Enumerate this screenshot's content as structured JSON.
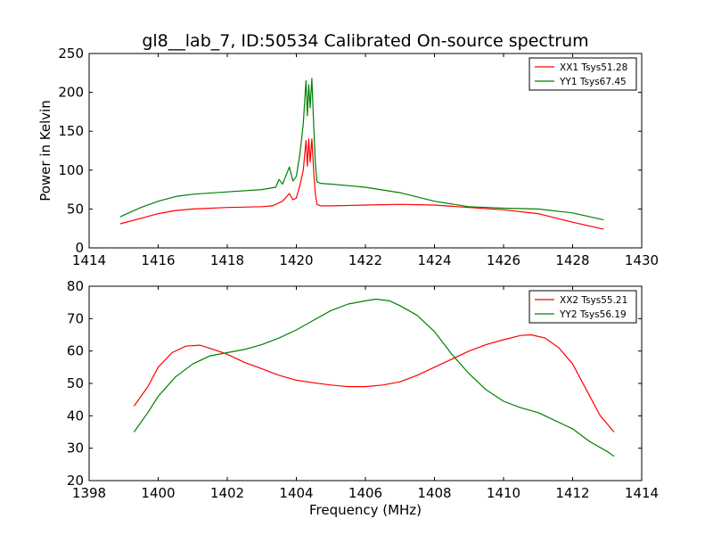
{
  "title": "gl8__lab_7, ID:50534 Calibrated On-source spectrum",
  "xlabel": "Frequency (MHz)",
  "colors": {
    "red": "#ff0000",
    "green": "#008000"
  },
  "chart_data": [
    {
      "type": "line",
      "title": "gl8__lab_7, ID:50534 Calibrated On-source spectrum",
      "xlabel": "",
      "ylabel": "Power in Kelvin",
      "xlim": [
        1414,
        1430
      ],
      "ylim": [
        0,
        250
      ],
      "xticks": [
        "1414",
        "1416",
        "1418",
        "1420",
        "1422",
        "1424",
        "1426",
        "1428",
        "1430"
      ],
      "yticks": [
        "0",
        "50",
        "100",
        "150",
        "200",
        "250"
      ],
      "grid": false,
      "legend": "top-right",
      "series": [
        {
          "name": "XX1 Tsys51.28",
          "color": "#ff0000",
          "x": [
            1414.9,
            1415.5,
            1416.0,
            1416.5,
            1417.0,
            1418.0,
            1419.0,
            1419.3,
            1419.6,
            1419.8,
            1419.9,
            1420.0,
            1420.1,
            1420.2,
            1420.28,
            1420.32,
            1420.36,
            1420.4,
            1420.45,
            1420.5,
            1420.55,
            1420.6,
            1420.7,
            1421.0,
            1422.0,
            1423.0,
            1424.0,
            1425.0,
            1426.0,
            1427.0,
            1428.0,
            1428.9
          ],
          "y": [
            31,
            38,
            44,
            48,
            50,
            52,
            53,
            54,
            60,
            70,
            62,
            64,
            80,
            100,
            138,
            105,
            140,
            110,
            140,
            100,
            70,
            56,
            54,
            54,
            55,
            56,
            55,
            52,
            49,
            44,
            33,
            24
          ]
        },
        {
          "name": "YY1 Tsys67.45",
          "color": "#008000",
          "x": [
            1414.9,
            1415.5,
            1416.0,
            1416.5,
            1417.0,
            1418.0,
            1419.0,
            1419.4,
            1419.5,
            1419.6,
            1419.8,
            1419.9,
            1420.0,
            1420.1,
            1420.2,
            1420.28,
            1420.32,
            1420.36,
            1420.4,
            1420.45,
            1420.5,
            1420.55,
            1420.6,
            1420.7,
            1421.0,
            1421.5,
            1422.0,
            1423.0,
            1424.0,
            1425.0,
            1426.0,
            1427.0,
            1428.0,
            1428.9
          ],
          "y": [
            40,
            52,
            60,
            66,
            69,
            72,
            75,
            78,
            88,
            82,
            104,
            86,
            92,
            120,
            160,
            215,
            170,
            210,
            180,
            218,
            160,
            110,
            85,
            83,
            82,
            80,
            78,
            71,
            60,
            53,
            51,
            50,
            45,
            36
          ]
        }
      ]
    },
    {
      "type": "line",
      "title": "",
      "xlabel": "Frequency (MHz)",
      "ylabel": "",
      "xlim": [
        1398,
        1414
      ],
      "ylim": [
        20,
        80
      ],
      "xticks": [
        "1398",
        "1400",
        "1402",
        "1404",
        "1406",
        "1408",
        "1410",
        "1412",
        "1414"
      ],
      "yticks": [
        "20",
        "30",
        "40",
        "50",
        "60",
        "70",
        "80"
      ],
      "grid": false,
      "legend": "top-right",
      "series": [
        {
          "name": "XX2 Tsys55.21",
          "color": "#ff0000",
          "x": [
            1399.3,
            1399.7,
            1400.0,
            1400.4,
            1400.8,
            1401.2,
            1401.6,
            1402.0,
            1402.5,
            1403.0,
            1403.5,
            1404.0,
            1404.5,
            1405.0,
            1405.5,
            1406.0,
            1406.5,
            1407.0,
            1407.5,
            1408.0,
            1408.5,
            1409.0,
            1409.5,
            1410.0,
            1410.5,
            1410.8,
            1411.2,
            1411.6,
            1412.0,
            1412.4,
            1412.8,
            1413.2
          ],
          "y": [
            43,
            49,
            55,
            59.5,
            61.5,
            61.8,
            60.5,
            59,
            56.5,
            54.5,
            52.5,
            51,
            50.2,
            49.5,
            49,
            49,
            49.5,
            50.5,
            52.5,
            55,
            57.5,
            60,
            62,
            63.5,
            64.8,
            65,
            64,
            61,
            56,
            48,
            40,
            35
          ]
        },
        {
          "name": "YY2 Tsys56.19",
          "color": "#008000",
          "x": [
            1399.3,
            1399.7,
            1400.0,
            1400.5,
            1401.0,
            1401.5,
            1402.0,
            1402.5,
            1403.0,
            1403.5,
            1404.0,
            1404.5,
            1405.0,
            1405.5,
            1406.0,
            1406.3,
            1406.7,
            1407.0,
            1407.5,
            1408.0,
            1408.5,
            1409.0,
            1409.5,
            1410.0,
            1410.5,
            1411.0,
            1411.5,
            1412.0,
            1412.5,
            1413.0,
            1413.2
          ],
          "y": [
            35,
            41,
            46,
            52,
            56,
            58.5,
            59.5,
            60.5,
            62,
            64,
            66.5,
            69.5,
            72.5,
            74.5,
            75.5,
            76,
            75.5,
            74,
            71,
            66,
            59,
            53,
            48,
            44.5,
            42.5,
            41,
            38.5,
            36,
            32,
            29,
            27.5
          ]
        }
      ]
    }
  ]
}
